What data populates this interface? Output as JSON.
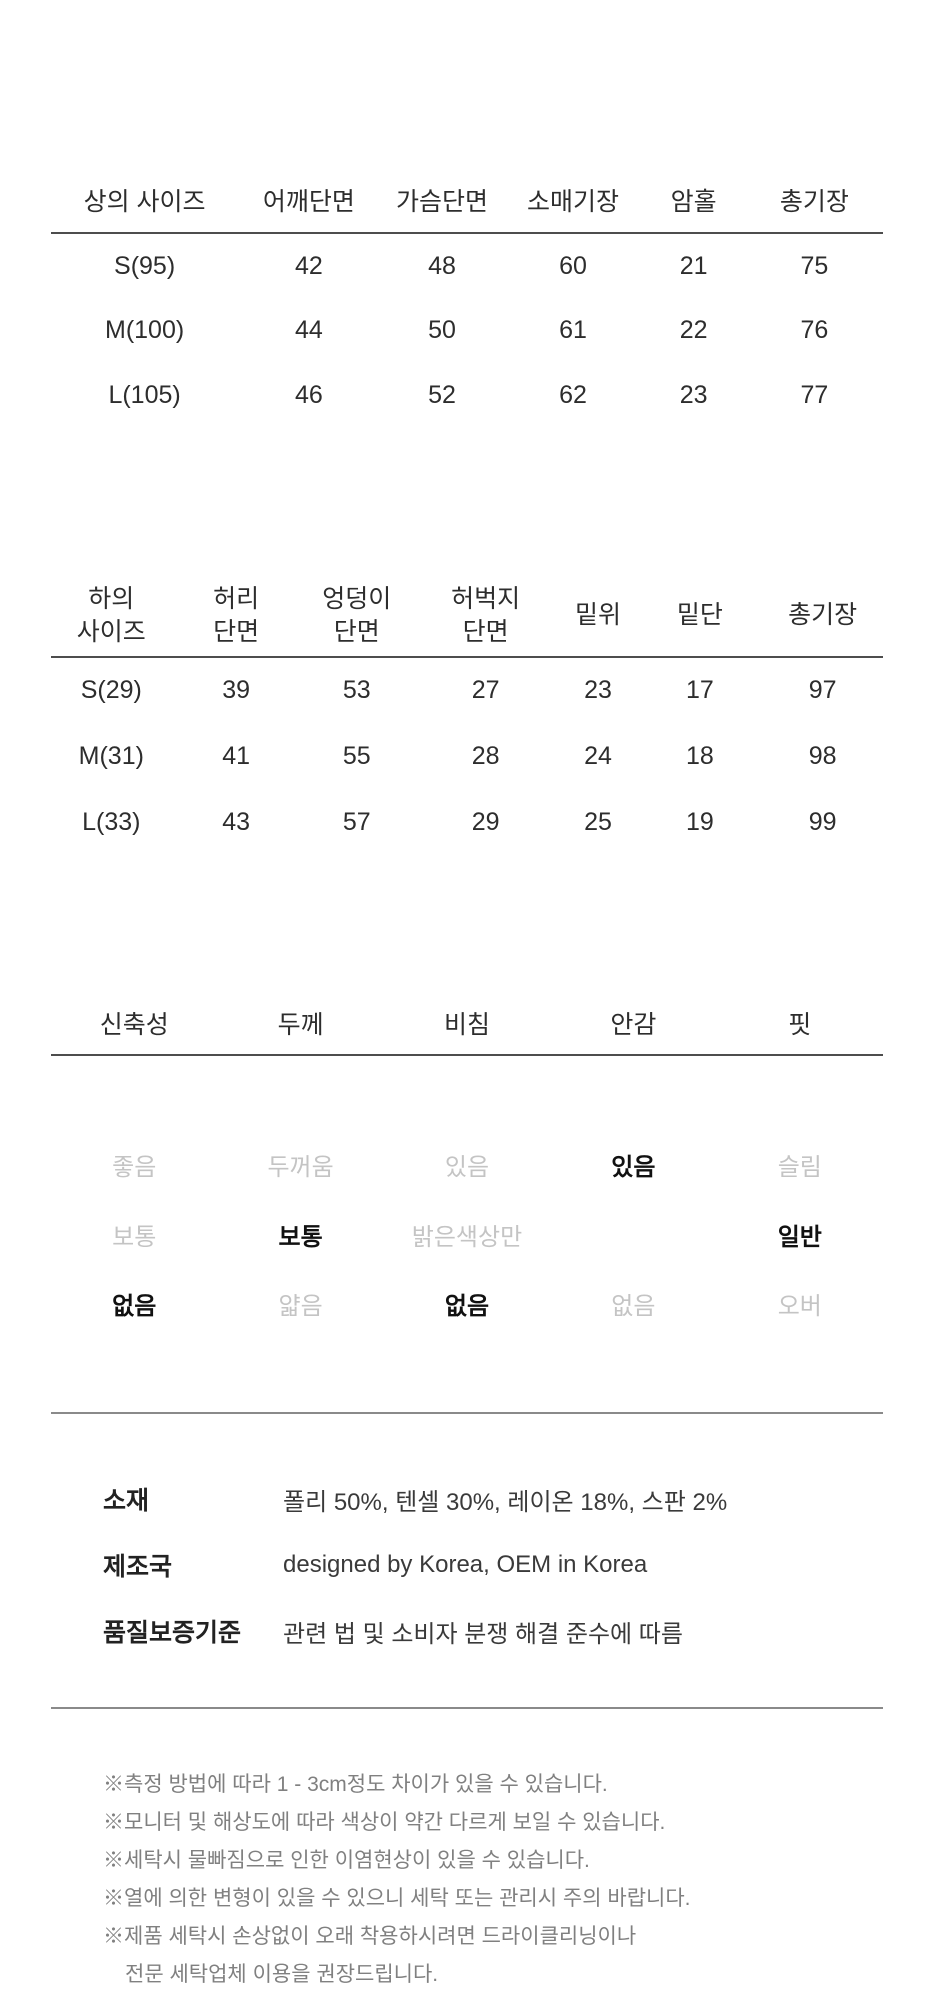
{
  "colors": {
    "text": "#2d2d2d",
    "dim_option": "#c4c4c4",
    "selected_option": "#111111",
    "footnote": "#808080",
    "header_rule": "#4d4d4d",
    "divider_rule": "#8a8a8a",
    "background": "#ffffff"
  },
  "top_table": {
    "headers": [
      [
        "상의 사이즈"
      ],
      [
        "어깨단면"
      ],
      [
        "가슴단면"
      ],
      [
        "소매기장"
      ],
      [
        "암홀"
      ],
      [
        "총기장"
      ]
    ],
    "rows": [
      [
        "S(95)",
        "42",
        "48",
        "60",
        "21",
        "75"
      ],
      [
        "M(100)",
        "44",
        "50",
        "61",
        "22",
        "76"
      ],
      [
        "L(105)",
        "46",
        "52",
        "62",
        "23",
        "77"
      ]
    ]
  },
  "bottom_table": {
    "headers": [
      [
        "하의",
        "사이즈"
      ],
      [
        "허리",
        "단면"
      ],
      [
        "엉덩이",
        "단면"
      ],
      [
        "허벅지",
        "단면"
      ],
      [
        "밑위"
      ],
      [
        "밑단"
      ],
      [
        "총기장"
      ]
    ],
    "rows": [
      [
        "S(29)",
        "39",
        "53",
        "27",
        "23",
        "17",
        "97"
      ],
      [
        "M(31)",
        "41",
        "55",
        "28",
        "24",
        "18",
        "98"
      ],
      [
        "L(33)",
        "43",
        "57",
        "29",
        "25",
        "19",
        "99"
      ]
    ]
  },
  "attributes_table": {
    "headers": [
      "신축성",
      "두께",
      "비침",
      "안감",
      "핏"
    ],
    "rows": [
      [
        {
          "t": "좋음",
          "s": "dim"
        },
        {
          "t": "두꺼움",
          "s": "dim"
        },
        {
          "t": "있음",
          "s": "dim"
        },
        {
          "t": "있음",
          "s": "on"
        },
        {
          "t": "슬림",
          "s": "dim"
        }
      ],
      [
        {
          "t": "보통",
          "s": "dim"
        },
        {
          "t": "보통",
          "s": "on"
        },
        {
          "t": "밝은색상만",
          "s": "dim"
        },
        {
          "t": "",
          "s": ""
        },
        {
          "t": "일반",
          "s": "on"
        }
      ],
      [
        {
          "t": "없음",
          "s": "on"
        },
        {
          "t": "얇음",
          "s": "dim"
        },
        {
          "t": "없음",
          "s": "on"
        },
        {
          "t": "없음",
          "s": "dim"
        },
        {
          "t": "오버",
          "s": "dim"
        }
      ]
    ]
  },
  "info": {
    "rows": [
      {
        "label": "소재",
        "value": "폴리 50%, 텐셀 30%, 레이온 18%, 스판 2%"
      },
      {
        "label": "제조국",
        "value": "designed by Korea, OEM in Korea"
      },
      {
        "label": "품질보증기준",
        "value": "관련 법 및 소비자 분쟁 해결 준수에 따름"
      }
    ]
  },
  "footnotes": [
    {
      "text": "※측정 방법에 따라 1 - 3cm정도 차이가 있을 수 있습니다.",
      "indent": false
    },
    {
      "text": "※모니터 및 해상도에 따라 색상이 약간 다르게 보일 수 있습니다.",
      "indent": false
    },
    {
      "text": "※세탁시 물빠짐으로 인한 이염현상이 있을 수 있습니다.",
      "indent": false
    },
    {
      "text": "※열에 의한 변형이 있을 수 있으니 세탁 또는 관리시 주의 바랍니다.",
      "indent": false
    },
    {
      "text": "※제품 세탁시 손상없이 오래 착용하시려면 드라이클리닝이나",
      "indent": false
    },
    {
      "text": "전문 세탁업체 이용을 권장드립니다.",
      "indent": true
    }
  ]
}
